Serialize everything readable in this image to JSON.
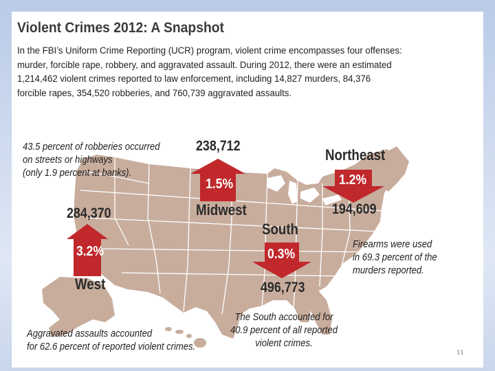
{
  "title": "Violent Crimes 2012: A Snapshot",
  "intro_lines": [
    "In the FBI’s Uniform Crime Reporting (UCR) program, violent crime encompasses four offenses:",
    "murder, forcible rape, robbery, and aggravated assault. During 2012, there were an estimated",
    "1,214,462 violent crimes reported to law enforcement, including 14,827 murders, 84,376",
    "forcible rapes, 354,520 robberies, and 760,739 aggravated assaults."
  ],
  "regions": {
    "west": {
      "name": "West",
      "count": "284,370",
      "change": "3.2%",
      "direction": "up"
    },
    "midwest": {
      "name": "Midwest",
      "count": "238,712",
      "change": "1.5%",
      "direction": "up"
    },
    "northeast": {
      "name": "Northeast",
      "count": "194,609",
      "change": "1.2%",
      "direction": "down"
    },
    "south": {
      "name": "South",
      "count": "496,773",
      "change": "0.3%",
      "direction": "down"
    }
  },
  "notes": {
    "robberies": [
      "43.5 percent of robberies occurred",
      "on streets or highways",
      "(only 1.9 percent at banks)."
    ],
    "firearms": [
      "Firearms were used",
      "in 69.3 percent of the",
      "murders reported."
    ],
    "assaults": [
      "Aggravated assaults accounted",
      "for 62.6 percent of reported violent crimes."
    ],
    "south_share": [
      "The South accounted for",
      "40.9 percent of all reported",
      "violent crimes."
    ]
  },
  "colors": {
    "map": "#c8ad9d",
    "arrow": "#c0282c",
    "state_borders": "#ffffff"
  },
  "page_number": "11"
}
